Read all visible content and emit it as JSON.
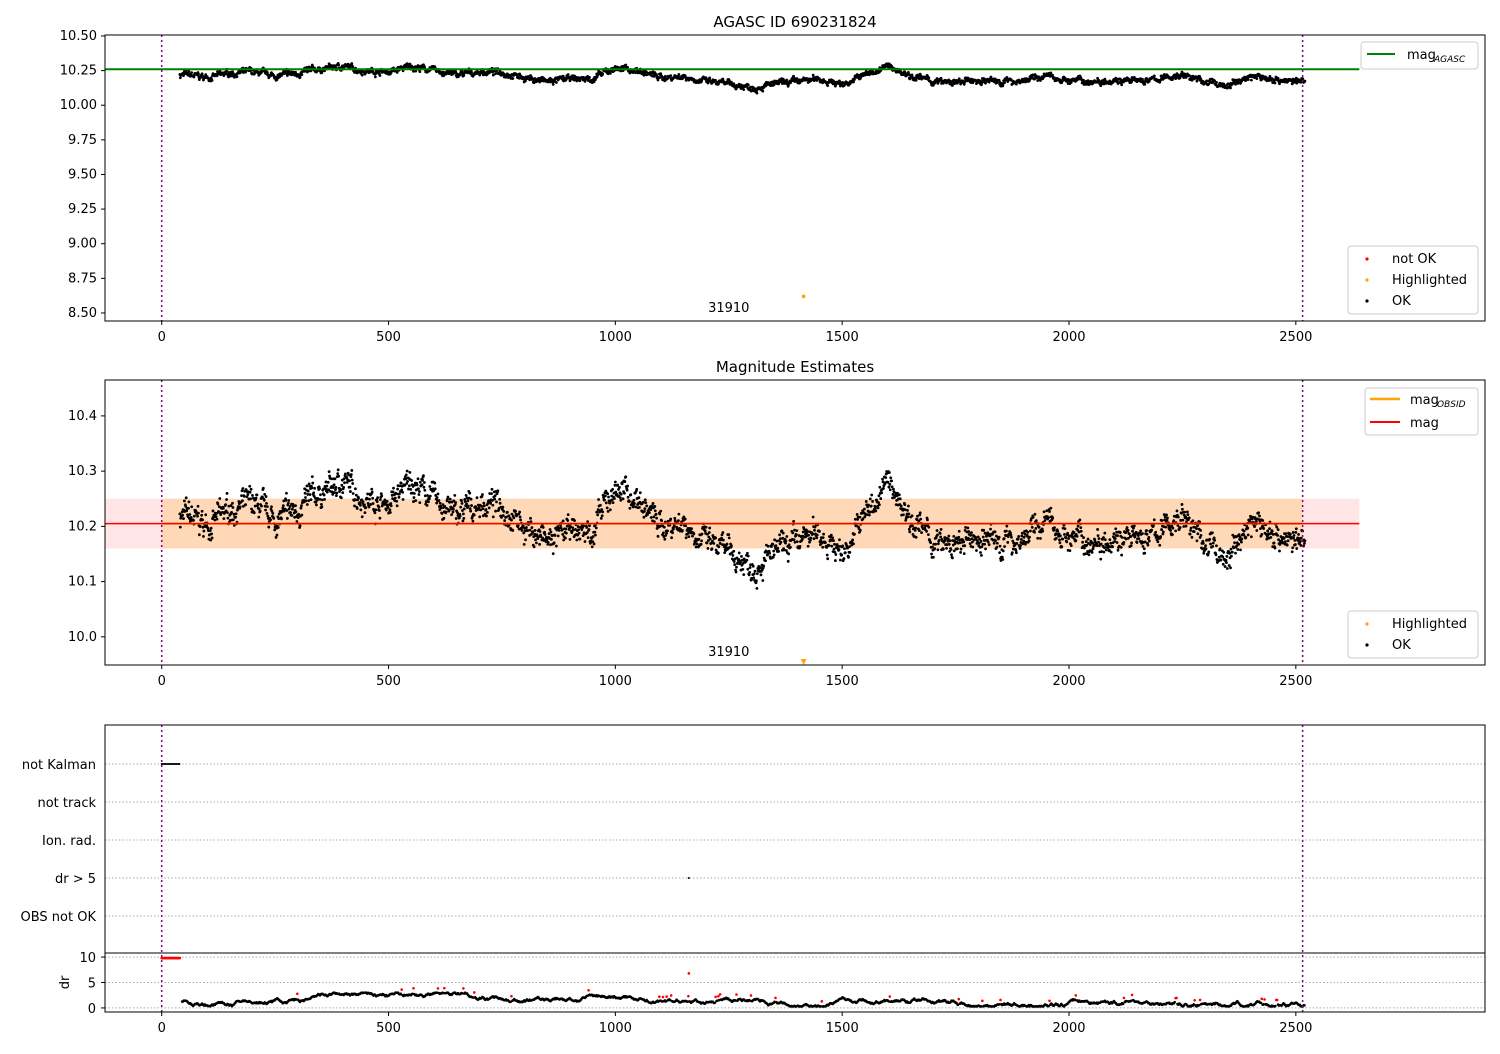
{
  "chart_data": [
    {
      "type": "scatter",
      "title": "AGASC ID 690231824",
      "xlim": [
        -125,
        2917
      ],
      "ylim": [
        8.442,
        10.507
      ],
      "xticks": [
        0,
        500,
        1000,
        1500,
        2000,
        2500
      ],
      "yticks": [
        10.5,
        10.25,
        10.0,
        9.75,
        9.5,
        9.25,
        9.0,
        8.75,
        8.5
      ],
      "reference_line": {
        "label": "mag",
        "sub": "AGASC",
        "value": 10.26,
        "color": "#008000",
        "x_end": 2640
      },
      "legend": [
        {
          "label": "not OK",
          "color": "#ff0000"
        },
        {
          "label": "Highlighted",
          "color": "#ffa500"
        },
        {
          "label": "OK",
          "color": "#000000"
        }
      ],
      "highlighted": {
        "x": 1415,
        "y": 8.62,
        "label": "31910"
      }
    },
    {
      "type": "scatter",
      "title": "Magnitude Estimates",
      "xlim": [
        -125,
        2917
      ],
      "ylim": [
        9.949,
        10.465
      ],
      "xticks": [
        0,
        500,
        1000,
        1500,
        2000,
        2500
      ],
      "yticks": [
        10.4,
        10.3,
        10.2,
        10.1,
        10.0
      ],
      "mag_line": {
        "label": "mag",
        "value": 10.205,
        "band": [
          10.16,
          10.25
        ],
        "color": "#ff0000",
        "x_end": 2640
      },
      "mag_obsid": {
        "label": "mag",
        "sub": "OBSID",
        "color": "#ffa500",
        "range": [
          0,
          2515
        ]
      },
      "legend": [
        {
          "label": "Highlighted",
          "color": "#ffa500"
        },
        {
          "label": "OK",
          "color": "#000000"
        }
      ],
      "highlighted": {
        "x": 1415,
        "label": "31910"
      }
    },
    {
      "type": "scatter",
      "xlim": [
        -125,
        2917
      ],
      "flag_rows": [
        "not Kalman",
        "not track",
        "Ion. rad.",
        "dr > 5",
        "OBS not OK"
      ],
      "dr_ylabel": "dr",
      "dr_ylim": [
        -0.8,
        10.8
      ],
      "dr_yticks": [
        10,
        5,
        0
      ],
      "xticks": [
        0,
        500,
        1000,
        1500,
        2000,
        2500
      ],
      "not_kalman_range": [
        0,
        40
      ],
      "dr_gt5_point": {
        "x": 1162,
        "dr": 6.8
      }
    }
  ],
  "obs_boundaries": [
    0,
    2515
  ],
  "series": {
    "x_start": 40,
    "x_end": 2520,
    "trend_step": 50,
    "trend": [
      10.22,
      10.2,
      10.23,
      10.24,
      10.21,
      10.23,
      10.26,
      10.28,
      10.25,
      10.24,
      10.28,
      10.25,
      10.22,
      10.24,
      10.24,
      10.2,
      10.17,
      10.19,
      10.19,
      10.27,
      10.25,
      10.2,
      10.21,
      10.17,
      10.15,
      10.13,
      10.15,
      10.17,
      10.19,
      10.15,
      10.22,
      10.28,
      10.22,
      10.17,
      10.16,
      10.18,
      10.17,
      10.18,
      10.21,
      10.18,
      10.17,
      10.19,
      10.17,
      10.19,
      10.22,
      10.17,
      10.14,
      10.21,
      10.19,
      10.17
    ]
  }
}
